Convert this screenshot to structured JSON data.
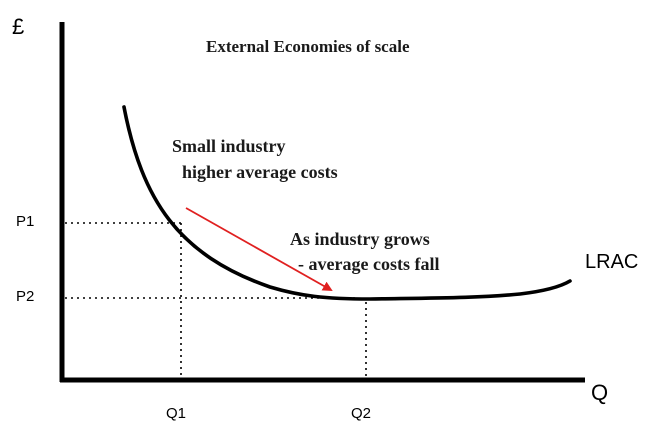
{
  "title": "External Economies of scale",
  "axes": {
    "y_label": "£",
    "x_label": "Q"
  },
  "price_ticks": [
    {
      "key": "p1",
      "label": "P1"
    },
    {
      "key": "p2",
      "label": "P2"
    }
  ],
  "quantity_ticks": [
    {
      "key": "q1",
      "label": "Q1"
    },
    {
      "key": "q2",
      "label": "Q2"
    }
  ],
  "curve": {
    "label": "LRAC",
    "color": "#000000"
  },
  "annotations": {
    "small_industry_line1": "Small industry",
    "small_industry_line2": "higher average costs",
    "grows_line1": "As industry grows",
    "grows_line2": "- average costs fall"
  },
  "arrow_color": "#e02020"
}
